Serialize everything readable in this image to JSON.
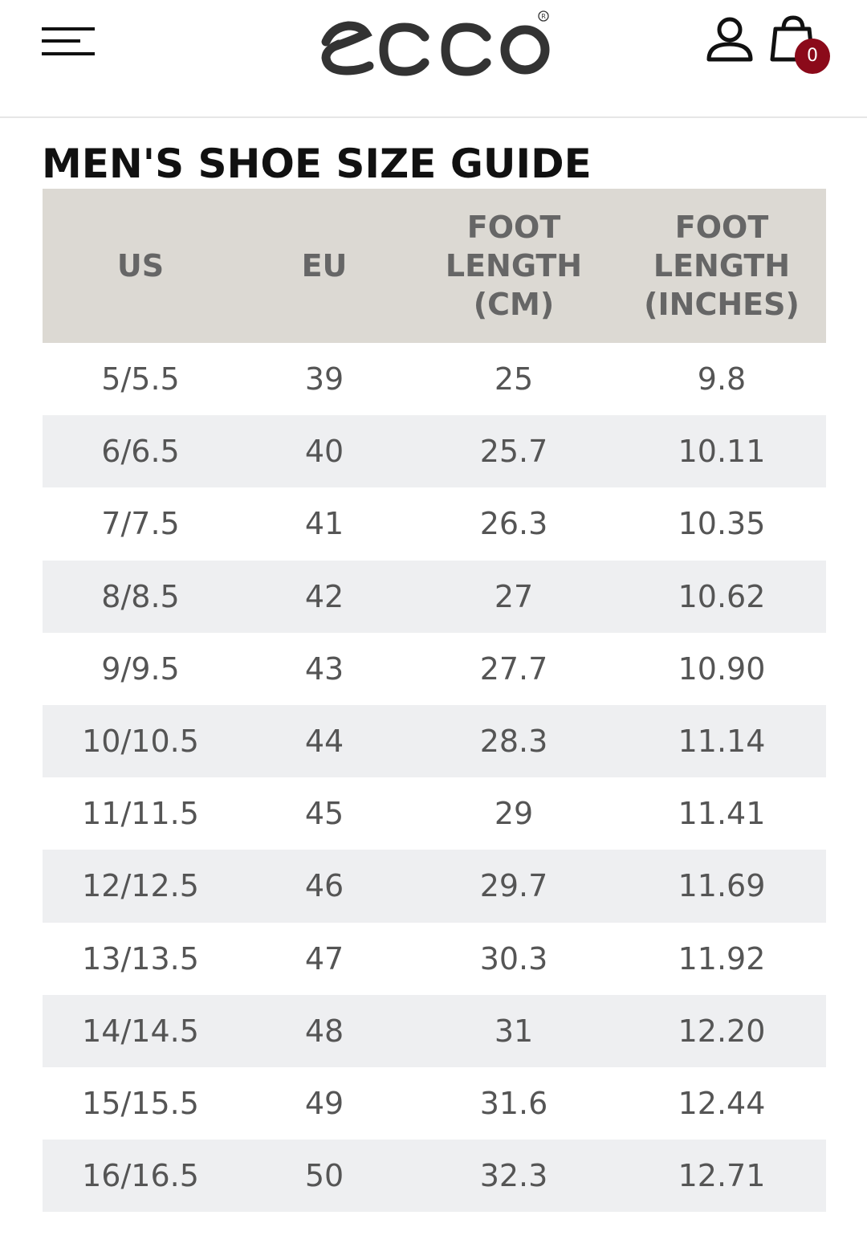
{
  "colors": {
    "header_row_bg": "#dcd9d3",
    "alt_row_bg": "#eeeff1",
    "badge_bg": "#8b0a1a"
  },
  "header": {
    "logo_text": "ecco",
    "icons": [
      "menu-icon",
      "account-icon",
      "shopping-bag-icon"
    ],
    "cart_count": "0"
  },
  "page": {
    "title": "MEN'S SHOE SIZE GUIDE"
  },
  "size_table": {
    "columns": [
      {
        "lines": [
          "US"
        ]
      },
      {
        "lines": [
          "EU"
        ]
      },
      {
        "lines": [
          "FOOT",
          "LENGTH",
          "(CM)"
        ]
      },
      {
        "lines": [
          "FOOT",
          "LENGTH",
          "(INCHES)"
        ]
      }
    ],
    "rows": [
      [
        "5/5.5",
        "39",
        "25",
        "9.8"
      ],
      [
        "6/6.5",
        "40",
        "25.7",
        "10.11"
      ],
      [
        "7/7.5",
        "41",
        "26.3",
        "10.35"
      ],
      [
        "8/8.5",
        "42",
        "27",
        "10.62"
      ],
      [
        "9/9.5",
        "43",
        "27.7",
        "10.90"
      ],
      [
        "10/10.5",
        "44",
        "28.3",
        "11.14"
      ],
      [
        "11/11.5",
        "45",
        "29",
        "11.41"
      ],
      [
        "12/12.5",
        "46",
        "29.7",
        "11.69"
      ],
      [
        "13/13.5",
        "47",
        "30.3",
        "11.92"
      ],
      [
        "14/14.5",
        "48",
        "31",
        "12.20"
      ],
      [
        "15/15.5",
        "49",
        "31.6",
        "12.44"
      ],
      [
        "16/16.5",
        "50",
        "32.3",
        "12.71"
      ]
    ]
  }
}
